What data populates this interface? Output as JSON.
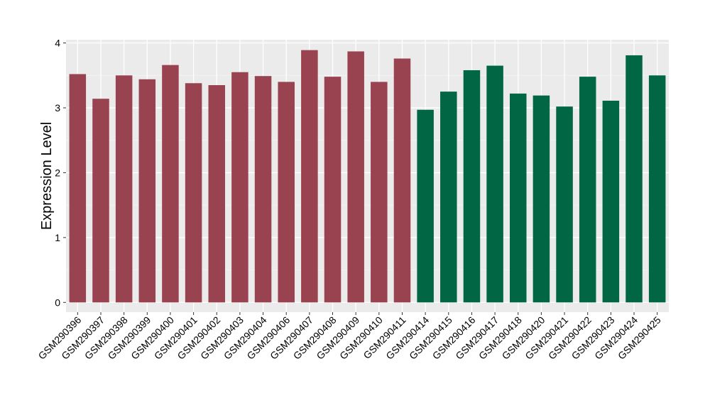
{
  "chart_data": {
    "type": "bar",
    "title": "",
    "xlabel": "",
    "ylabel": "Expression Level",
    "ylim": [
      -0.15,
      4.05
    ],
    "yticks": [
      0,
      1,
      2,
      3,
      4
    ],
    "grid": true,
    "legend": "none",
    "categories": [
      "GSM290396",
      "GSM290397",
      "GSM290398",
      "GSM290399",
      "GSM290400",
      "GSM290401",
      "GSM290402",
      "GSM290403",
      "GSM290404",
      "GSM290406",
      "GSM290407",
      "GSM290408",
      "GSM290409",
      "GSM290410",
      "GSM290411",
      "GSM290414",
      "GSM290415",
      "GSM290416",
      "GSM290417",
      "GSM290418",
      "GSM290420",
      "GSM290421",
      "GSM290422",
      "GSM290423",
      "GSM290424",
      "GSM290425"
    ],
    "values": [
      3.52,
      3.14,
      3.5,
      3.44,
      3.66,
      3.38,
      3.35,
      3.55,
      3.49,
      3.4,
      3.89,
      3.48,
      3.87,
      3.4,
      3.76,
      2.97,
      3.25,
      3.58,
      3.65,
      3.22,
      3.19,
      3.02,
      3.48,
      3.11,
      3.81,
      3.5
    ],
    "groups": [
      "a",
      "a",
      "a",
      "a",
      "a",
      "a",
      "a",
      "a",
      "a",
      "a",
      "a",
      "a",
      "a",
      "a",
      "a",
      "b",
      "b",
      "b",
      "b",
      "b",
      "b",
      "b",
      "b",
      "b",
      "b",
      "b"
    ],
    "colors": {
      "a": "#9a4350",
      "b": "#006644",
      "panel": "#ebebeb",
      "grid_major": "#ffffff",
      "grid_minor": "#f5f5f5",
      "tick": "#333333"
    }
  }
}
